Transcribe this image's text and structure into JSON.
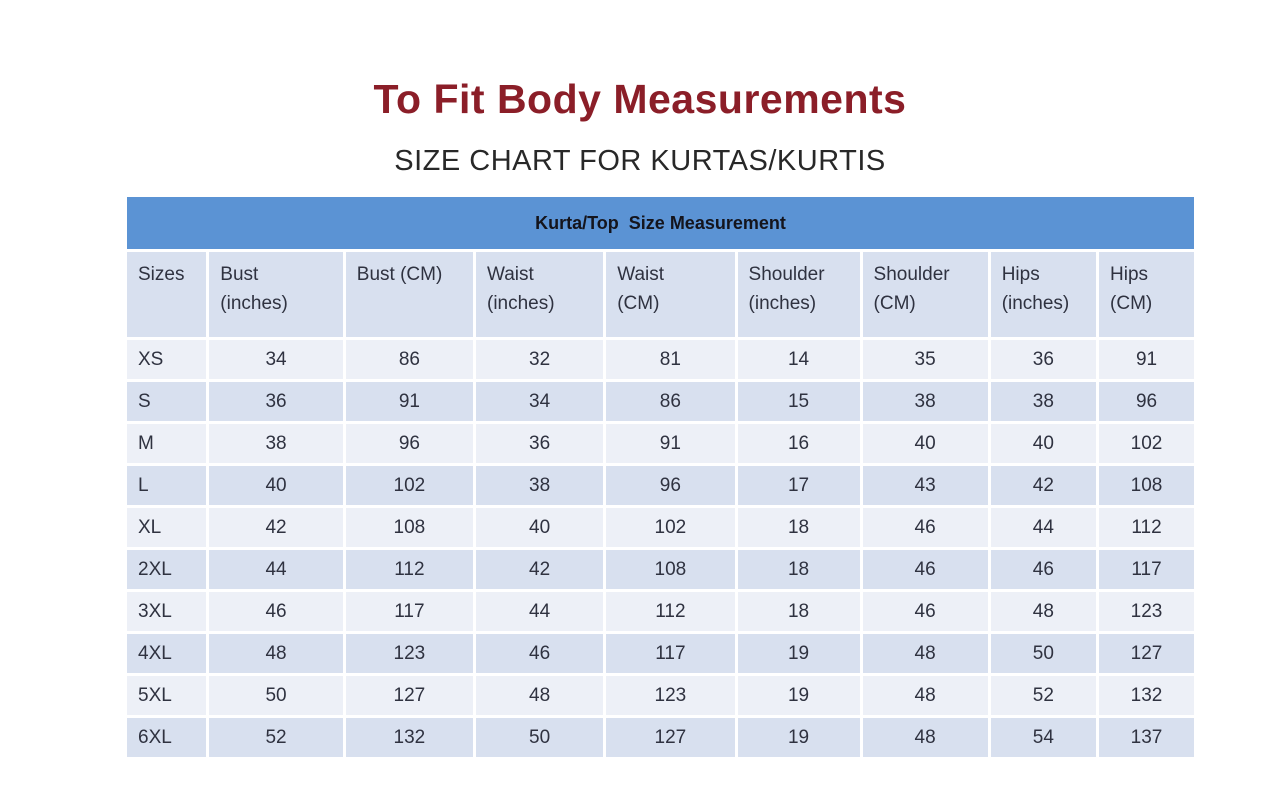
{
  "page": {
    "title": "To Fit Body Measurements",
    "subtitle": "SIZE CHART FOR KURTAS/KURTIS"
  },
  "colors": {
    "title_maroon": "#8B1E28",
    "banner_blue": "#5B93D4",
    "header_row_bg": "#D8E0EF",
    "row_light_bg": "#EDF0F7",
    "row_alt_bg": "#D8E0EF",
    "table_text": "#2F3240"
  },
  "chart_data": {
    "type": "table",
    "title": "To Fit Body Measurements",
    "subtitle": "SIZE CHART FOR KURTAS/KURTIS",
    "banner": "Kurta/Top  Size Measurement",
    "columns": [
      "Sizes",
      "Bust\n(inches)",
      "Bust (CM)",
      "Waist\n(inches)",
      "Waist\n(CM)",
      "Shoulder\n(inches)",
      "Shoulder\n(CM)",
      "Hips\n(inches)",
      "Hips\n(CM)"
    ],
    "rows": [
      [
        "XS",
        34,
        86,
        32,
        81,
        14,
        35,
        36,
        91
      ],
      [
        "S",
        36,
        91,
        34,
        86,
        15,
        38,
        38,
        96
      ],
      [
        "M",
        38,
        96,
        36,
        91,
        16,
        40,
        40,
        102
      ],
      [
        "L",
        40,
        102,
        38,
        96,
        17,
        43,
        42,
        108
      ],
      [
        "XL",
        42,
        108,
        40,
        102,
        18,
        46,
        44,
        112
      ],
      [
        "2XL",
        44,
        112,
        42,
        108,
        18,
        46,
        46,
        117
      ],
      [
        "3XL",
        46,
        117,
        44,
        112,
        18,
        46,
        48,
        123
      ],
      [
        "4XL",
        48,
        123,
        46,
        117,
        19,
        48,
        50,
        127
      ],
      [
        "5XL",
        50,
        127,
        48,
        123,
        19,
        48,
        52,
        132
      ],
      [
        "6XL",
        52,
        132,
        50,
        127,
        19,
        48,
        54,
        137
      ]
    ]
  }
}
